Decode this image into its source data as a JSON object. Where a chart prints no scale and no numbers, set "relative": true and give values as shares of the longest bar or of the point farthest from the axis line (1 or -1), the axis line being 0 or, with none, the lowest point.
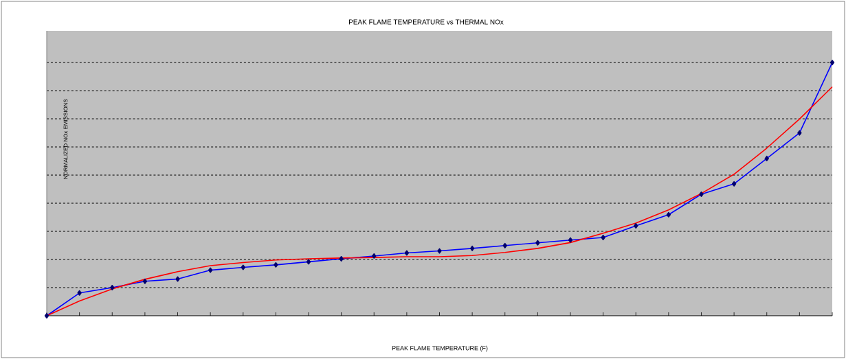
{
  "chart_data": {
    "type": "line",
    "title": "PEAK FLAME TEMPERATURE vs THERMAL NOx",
    "xlabel": "PEAK FLAME TEMPERATURE (F)",
    "ylabel": "NORMALIZED NOx EMISSIONS",
    "relative": true,
    "categories": [
      null,
      null,
      null,
      null,
      null,
      null,
      null,
      null,
      null,
      null,
      null,
      null,
      null,
      null,
      null,
      null,
      null,
      null,
      null,
      null,
      null,
      null,
      null,
      null,
      null
    ],
    "series": [
      {
        "color": "#0000ff",
        "marker": "diamond",
        "values": [
          0,
          0.09,
          0.111,
          0.136,
          0.145,
          0.18,
          0.191,
          0.201,
          0.213,
          0.225,
          0.236,
          0.248,
          0.256,
          0.266,
          0.277,
          0.288,
          0.299,
          0.309,
          0.355,
          0.399,
          0.48,
          0.521,
          0.621,
          0.722,
          1
        ]
      },
      {
        "color": "#ff0000",
        "marker": "none",
        "values": [
          0,
          0.058,
          0.106,
          0.144,
          0.174,
          0.198,
          0.21,
          0.22,
          0.225,
          0.228,
          0.23,
          0.233,
          0.233,
          0.238,
          0.25,
          0.266,
          0.289,
          0.326,
          0.366,
          0.418,
          0.483,
          0.559,
          0.662,
          0.777,
          0.904
        ]
      }
    ],
    "grid": "y",
    "line_style": "solid"
  }
}
